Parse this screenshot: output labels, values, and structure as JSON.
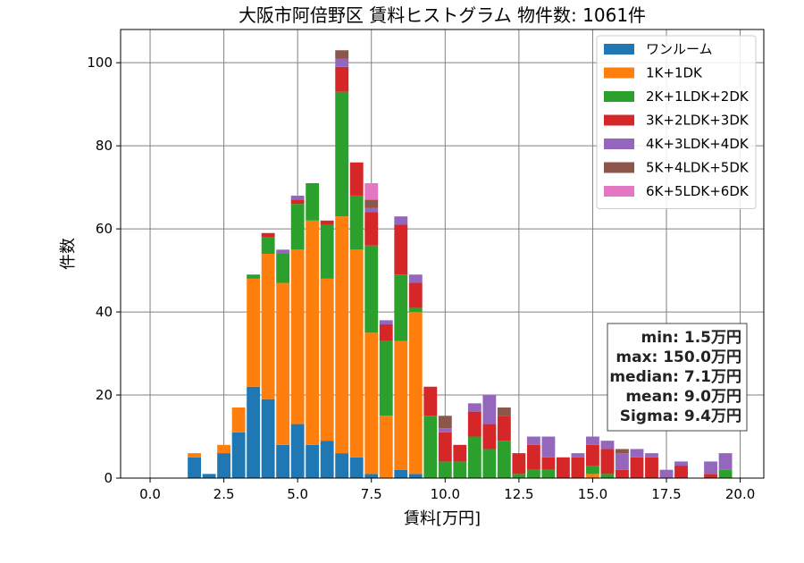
{
  "chart_data": {
    "type": "bar",
    "stacked": true,
    "title": "大阪市阿倍野区 賃料ヒストグラム 物件数: 1061件",
    "xlabel": "賃料[万円]",
    "ylabel": "件数",
    "xlim": [
      -1.0,
      20.8
    ],
    "ylim": [
      0,
      108
    ],
    "xticks": [
      0.0,
      2.5,
      5.0,
      7.5,
      10.0,
      12.5,
      15.0,
      17.5,
      20.0
    ],
    "xtick_labels": [
      "0.0",
      "2.5",
      "5.0",
      "7.5",
      "10.0",
      "12.5",
      "15.0",
      "17.5",
      "20.0"
    ],
    "yticks": [
      0,
      20,
      40,
      60,
      80,
      100
    ],
    "ytick_labels": [
      "0",
      "20",
      "40",
      "60",
      "80",
      "100"
    ],
    "grid": true,
    "legend_position": "top-right",
    "bin_width": 0.5,
    "x": [
      1.5,
      2.0,
      2.5,
      3.0,
      3.5,
      4.0,
      4.5,
      5.0,
      5.5,
      6.0,
      6.5,
      7.0,
      7.5,
      8.0,
      8.5,
      9.0,
      9.5,
      10.0,
      10.5,
      11.0,
      11.5,
      12.0,
      12.5,
      13.0,
      13.5,
      14.0,
      14.5,
      15.0,
      15.5,
      16.0,
      16.5,
      17.0,
      17.5,
      18.0,
      18.5,
      19.0,
      19.5
    ],
    "series": [
      {
        "name": "ワンルーム",
        "color": "#1f77b4",
        "values": [
          5,
          1,
          6,
          11,
          22,
          19,
          8,
          13,
          8,
          9,
          6,
          5,
          1,
          0,
          2,
          1,
          0,
          0,
          0,
          0,
          0,
          0,
          0,
          0,
          0,
          0,
          0,
          0,
          0,
          0,
          0,
          0,
          0,
          0,
          0,
          0,
          0
        ]
      },
      {
        "name": "1K+1DK",
        "color": "#ff7f0e",
        "values": [
          1,
          0,
          2,
          6,
          26,
          35,
          39,
          42,
          54,
          39,
          57,
          50,
          34,
          15,
          31,
          39,
          0,
          0,
          0,
          0,
          0,
          0,
          0,
          0,
          0,
          0,
          0,
          1,
          0,
          0,
          0,
          0,
          0,
          0,
          0,
          0,
          0
        ]
      },
      {
        "name": "2K+1LDK+2DK",
        "color": "#2ca02c",
        "values": [
          0,
          0,
          0,
          0,
          1,
          4,
          7,
          11,
          9,
          13,
          30,
          13,
          21,
          18,
          16,
          1,
          15,
          4,
          4,
          10,
          7,
          9,
          1,
          2,
          2,
          0,
          0,
          2,
          1,
          0,
          0,
          0,
          0,
          0,
          0,
          0,
          2
        ]
      },
      {
        "name": "3K+2LDK+3DK",
        "color": "#d62728",
        "values": [
          0,
          0,
          0,
          0,
          0,
          1,
          0,
          1,
          0,
          1,
          6,
          8,
          8,
          4,
          12,
          6,
          7,
          7,
          4,
          6,
          6,
          6,
          5,
          6,
          3,
          5,
          5,
          5,
          6,
          2,
          5,
          5,
          0,
          3,
          0,
          1,
          0
        ]
      },
      {
        "name": "4K+3LDK+4DK",
        "color": "#9467bd",
        "values": [
          0,
          0,
          0,
          0,
          0,
          0,
          1,
          1,
          0,
          0,
          2,
          0,
          1,
          1,
          2,
          2,
          0,
          1,
          0,
          2,
          7,
          0,
          0,
          2,
          5,
          0,
          1,
          2,
          2,
          4,
          2,
          1,
          2,
          1,
          0,
          3,
          4
        ]
      },
      {
        "name": "5K+4LDK+5DK",
        "color": "#8c564b",
        "values": [
          0,
          0,
          0,
          0,
          0,
          0,
          0,
          0,
          0,
          0,
          2,
          0,
          2,
          0,
          0,
          0,
          0,
          3,
          0,
          0,
          0,
          2,
          0,
          0,
          0,
          0,
          0,
          0,
          0,
          1,
          0,
          0,
          0,
          0,
          0,
          0,
          0
        ]
      },
      {
        "name": "6K+5LDK+6DK",
        "color": "#e377c2",
        "values": [
          0,
          0,
          0,
          0,
          0,
          0,
          0,
          0,
          0,
          0,
          0,
          0,
          4,
          0,
          0,
          0,
          0,
          0,
          0,
          0,
          0,
          0,
          0,
          0,
          0,
          0,
          0,
          0,
          0,
          0,
          0,
          0,
          0,
          0,
          0,
          0,
          0
        ]
      }
    ],
    "stats_box": [
      "min: 1.5万円",
      "max: 150.0万円",
      "median: 7.1万円",
      "mean: 9.0万円",
      "Sigma: 9.4万円"
    ]
  }
}
